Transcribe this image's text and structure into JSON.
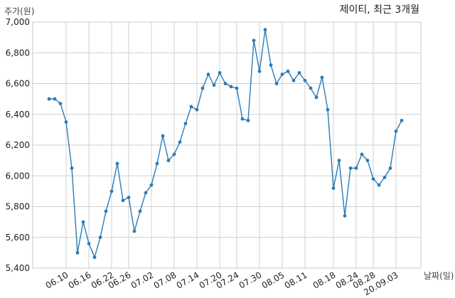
{
  "chart_data": {
    "type": "line",
    "title": "제이티, 최근 3개월",
    "xlabel": "날짜(일)",
    "ylabel": "주가(원)",
    "ylim": [
      5400,
      7000
    ],
    "yticks": [
      5400,
      5600,
      5800,
      6000,
      6200,
      6400,
      6600,
      6800,
      7000
    ],
    "ytick_labels": [
      "5,400",
      "5,600",
      "5,800",
      "6,000",
      "6,200",
      "6,400",
      "6,600",
      "6,800",
      "7,000"
    ],
    "xtick_labels": [
      "06.10",
      "06.16",
      "06.22",
      "06.26",
      "07.02",
      "07.08",
      "07.14",
      "07.20",
      "07.24",
      "07.30",
      "08.05",
      "08.11",
      "08.18",
      "08.24",
      "08.28",
      "20.09.03"
    ],
    "xtick_index": [
      3,
      7,
      11,
      14,
      18,
      22,
      26,
      30,
      33,
      37,
      41,
      45,
      50,
      54,
      57,
      61
    ],
    "grid": true,
    "color": "#2b7bb5",
    "series": [
      {
        "values": [
          6500,
          6500,
          6470,
          6350,
          6050,
          5500,
          5700,
          5560,
          5470,
          5600,
          5770,
          5900,
          6080,
          5840,
          5860,
          5640,
          5770,
          5890,
          5940,
          6080,
          6260,
          6100,
          6140,
          6220,
          6340,
          6450,
          6430,
          6570,
          6660,
          6590,
          6670,
          6600,
          6580,
          6570,
          6370,
          6360,
          6880,
          6680,
          6950,
          6720,
          6600,
          6660,
          6680,
          6620,
          6670,
          6620,
          6570,
          6510,
          6640,
          6430,
          5920,
          6100,
          5740,
          6050,
          6050,
          6140,
          6100,
          5980,
          5940,
          5990,
          6050,
          6290,
          6360
        ]
      }
    ]
  }
}
